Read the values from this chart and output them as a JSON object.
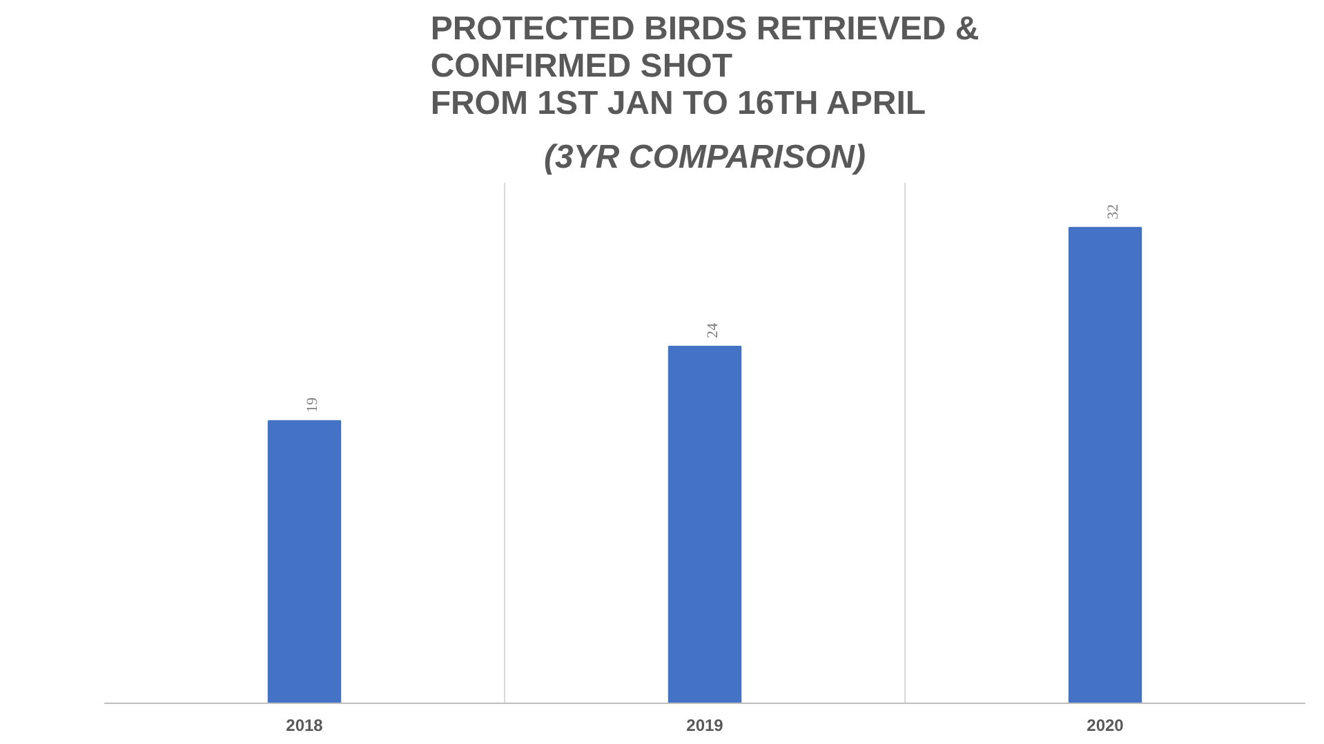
{
  "chart_data": {
    "type": "bar",
    "title": "PROTECTED BIRDS RETRIEVED &\nCONFIRMED SHOT\nFROM 1ST JAN TO 16TH APRIL",
    "subtitle": "(3YR COMPARISON)",
    "categories": [
      "2018",
      "2019",
      "2020"
    ],
    "values": [
      19,
      24,
      32
    ],
    "color": "#4472c4",
    "ylim": [
      0,
      35
    ],
    "data_labels": true,
    "grid": "x"
  }
}
